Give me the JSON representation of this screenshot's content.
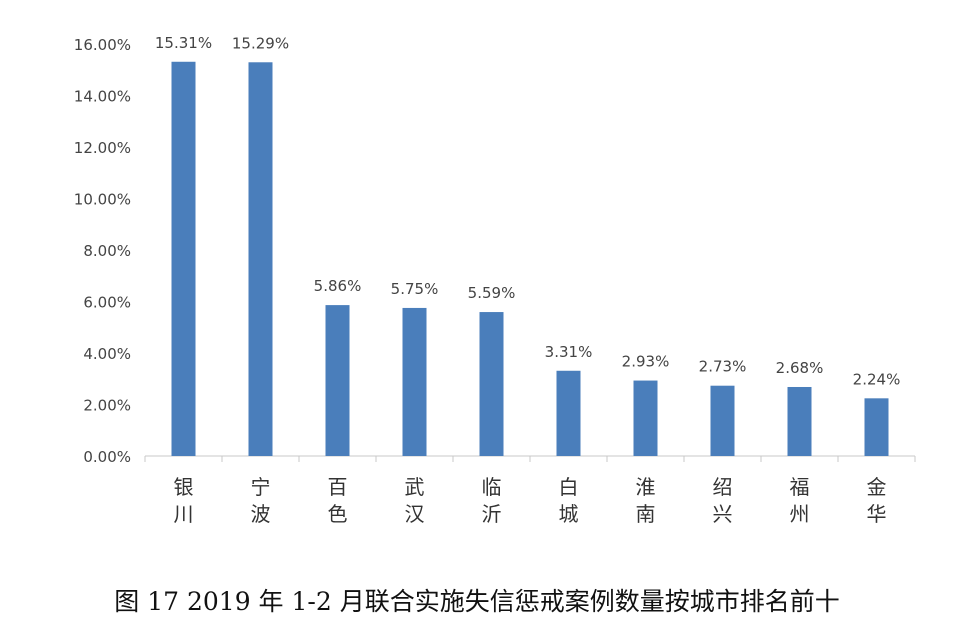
{
  "chart_data": {
    "type": "bar",
    "title": "图 17   2019 年 1-2 月联合实施失信惩戒案例数量按城市排名前十",
    "xlabel": "",
    "ylabel": "",
    "categories": [
      "银川",
      "宁波",
      "百色",
      "武汉",
      "临沂",
      "白城",
      "淮南",
      "绍兴",
      "福州",
      "金华"
    ],
    "values": [
      15.31,
      15.29,
      5.86,
      5.75,
      5.59,
      3.31,
      2.93,
      2.73,
      2.68,
      2.24
    ],
    "value_labels": [
      "15.31%",
      "15.29%",
      "5.86%",
      "5.75%",
      "5.59%",
      "3.31%",
      "2.93%",
      "2.73%",
      "2.68%",
      "2.24%"
    ],
    "ylim": [
      0,
      16
    ],
    "yticks": [
      0,
      2,
      4,
      6,
      8,
      10,
      12,
      14,
      16
    ],
    "ytick_labels": [
      "0.00%",
      "2.00%",
      "4.00%",
      "6.00%",
      "8.00%",
      "10.00%",
      "12.00%",
      "14.00%",
      "16.00%"
    ],
    "grid": false,
    "legend": "none",
    "bar_color": "#4a7ebb"
  }
}
